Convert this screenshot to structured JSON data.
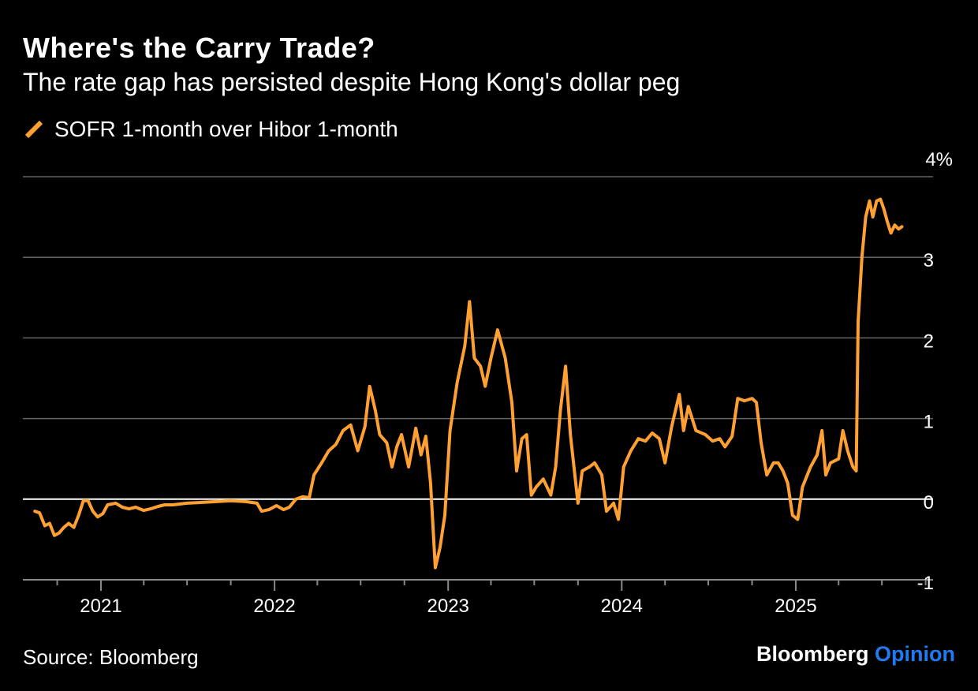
{
  "header": {
    "title": "Where's the Carry Trade?",
    "subtitle": "The rate gap has persisted despite Hong Kong's dollar peg"
  },
  "footer": {
    "source": "Source: Bloomberg",
    "brand_main": "Bloomberg",
    "brand_accent": "Opinion"
  },
  "colors": {
    "line": "#ffa033",
    "grid": "#666666",
    "zero": "#ffffff",
    "accent": "#1f7bf2"
  },
  "chart_data": {
    "type": "line",
    "title": "Where's the Carry Trade?",
    "subtitle": "The rate gap has persisted despite Hong Kong's dollar peg",
    "ylim": [
      -1,
      4
    ],
    "xlim": [
      "2020-08-01",
      "2025-12-31"
    ],
    "yticks": [
      -1,
      0,
      1,
      2,
      3,
      4
    ],
    "ytick_labels": [
      "-1",
      "0",
      "1",
      "2",
      "3",
      "4%"
    ],
    "xticks": [
      "2021-01-01",
      "2022-01-01",
      "2023-01-01",
      "2024-01-01",
      "2025-01-01"
    ],
    "xtick_labels": [
      "2021",
      "2022",
      "2023",
      "2024",
      "2025"
    ],
    "grid": true,
    "legend": "top-left",
    "series": [
      {
        "name": "SOFR 1-month over Hibor 1-month",
        "color": "#ffa033",
        "points": [
          [
            "2020-08-15",
            -0.15
          ],
          [
            "2020-08-25",
            -0.17
          ],
          [
            "2020-09-05",
            -0.33
          ],
          [
            "2020-09-15",
            -0.3
          ],
          [
            "2020-09-25",
            -0.45
          ],
          [
            "2020-10-05",
            -0.42
          ],
          [
            "2020-10-15",
            -0.35
          ],
          [
            "2020-10-25",
            -0.3
          ],
          [
            "2020-11-05",
            -0.35
          ],
          [
            "2020-11-15",
            -0.2
          ],
          [
            "2020-11-25",
            -0.02
          ],
          [
            "2020-12-05",
            -0.02
          ],
          [
            "2020-12-15",
            -0.15
          ],
          [
            "2020-12-25",
            -0.22
          ],
          [
            "2021-01-05",
            -0.18
          ],
          [
            "2021-01-15",
            -0.07
          ],
          [
            "2021-02-01",
            -0.05
          ],
          [
            "2021-02-15",
            -0.1
          ],
          [
            "2021-03-01",
            -0.12
          ],
          [
            "2021-03-15",
            -0.1
          ],
          [
            "2021-04-01",
            -0.14
          ],
          [
            "2021-04-15",
            -0.12
          ],
          [
            "2021-05-01",
            -0.09
          ],
          [
            "2021-05-15",
            -0.07
          ],
          [
            "2021-06-01",
            -0.07
          ],
          [
            "2021-07-01",
            -0.05
          ],
          [
            "2021-08-01",
            -0.04
          ],
          [
            "2021-09-01",
            -0.03
          ],
          [
            "2021-10-01",
            -0.02
          ],
          [
            "2021-11-01",
            -0.03
          ],
          [
            "2021-11-25",
            -0.05
          ],
          [
            "2021-12-05",
            -0.15
          ],
          [
            "2021-12-20",
            -0.13
          ],
          [
            "2022-01-05",
            -0.08
          ],
          [
            "2022-01-20",
            -0.13
          ],
          [
            "2022-02-01",
            -0.1
          ],
          [
            "2022-02-15",
            0.0
          ],
          [
            "2022-03-01",
            0.03
          ],
          [
            "2022-03-15",
            0.02
          ],
          [
            "2022-03-25",
            0.3
          ],
          [
            "2022-04-10",
            0.45
          ],
          [
            "2022-04-25",
            0.6
          ],
          [
            "2022-05-10",
            0.68
          ],
          [
            "2022-05-25",
            0.85
          ],
          [
            "2022-06-10",
            0.92
          ],
          [
            "2022-06-25",
            0.6
          ],
          [
            "2022-07-10",
            0.9
          ],
          [
            "2022-07-20",
            1.4
          ],
          [
            "2022-08-01",
            1.1
          ],
          [
            "2022-08-10",
            0.8
          ],
          [
            "2022-08-25",
            0.7
          ],
          [
            "2022-09-05",
            0.4
          ],
          [
            "2022-09-15",
            0.65
          ],
          [
            "2022-09-25",
            0.8
          ],
          [
            "2022-10-10",
            0.4
          ],
          [
            "2022-10-25",
            0.88
          ],
          [
            "2022-11-05",
            0.55
          ],
          [
            "2022-11-15",
            0.78
          ],
          [
            "2022-11-25",
            0.2
          ],
          [
            "2022-12-05",
            -0.85
          ],
          [
            "2022-12-15",
            -0.6
          ],
          [
            "2022-12-25",
            -0.2
          ],
          [
            "2023-01-05",
            0.85
          ],
          [
            "2023-01-20",
            1.45
          ],
          [
            "2023-02-05",
            1.9
          ],
          [
            "2023-02-15",
            2.45
          ],
          [
            "2023-02-25",
            1.75
          ],
          [
            "2023-03-10",
            1.65
          ],
          [
            "2023-03-20",
            1.4
          ],
          [
            "2023-04-01",
            1.75
          ],
          [
            "2023-04-15",
            2.1
          ],
          [
            "2023-05-01",
            1.75
          ],
          [
            "2023-05-15",
            1.2
          ],
          [
            "2023-05-25",
            0.35
          ],
          [
            "2023-06-05",
            0.75
          ],
          [
            "2023-06-15",
            0.8
          ],
          [
            "2023-06-25",
            0.05
          ],
          [
            "2023-07-05",
            0.15
          ],
          [
            "2023-07-20",
            0.25
          ],
          [
            "2023-08-05",
            0.05
          ],
          [
            "2023-08-15",
            0.4
          ],
          [
            "2023-08-25",
            1.1
          ],
          [
            "2023-09-05",
            1.65
          ],
          [
            "2023-09-15",
            0.8
          ],
          [
            "2023-10-01",
            -0.05
          ],
          [
            "2023-10-10",
            0.35
          ],
          [
            "2023-10-25",
            0.4
          ],
          [
            "2023-11-05",
            0.45
          ],
          [
            "2023-11-20",
            0.3
          ],
          [
            "2023-11-30",
            -0.15
          ],
          [
            "2023-12-15",
            -0.05
          ],
          [
            "2023-12-25",
            -0.25
          ],
          [
            "2024-01-05",
            0.4
          ],
          [
            "2024-01-20",
            0.6
          ],
          [
            "2024-02-05",
            0.75
          ],
          [
            "2024-02-20",
            0.72
          ],
          [
            "2024-03-05",
            0.82
          ],
          [
            "2024-03-20",
            0.75
          ],
          [
            "2024-04-01",
            0.45
          ],
          [
            "2024-04-15",
            0.9
          ],
          [
            "2024-05-01",
            1.3
          ],
          [
            "2024-05-10",
            0.85
          ],
          [
            "2024-05-20",
            1.15
          ],
          [
            "2024-06-05",
            0.85
          ],
          [
            "2024-06-25",
            0.8
          ],
          [
            "2024-07-10",
            0.72
          ],
          [
            "2024-07-25",
            0.75
          ],
          [
            "2024-08-05",
            0.65
          ],
          [
            "2024-08-20",
            0.78
          ],
          [
            "2024-09-01",
            1.25
          ],
          [
            "2024-09-15",
            1.22
          ],
          [
            "2024-10-01",
            1.25
          ],
          [
            "2024-10-10",
            1.2
          ],
          [
            "2024-10-20",
            0.7
          ],
          [
            "2024-11-01",
            0.3
          ],
          [
            "2024-11-15",
            0.45
          ],
          [
            "2024-11-25",
            0.45
          ],
          [
            "2024-12-05",
            0.35
          ],
          [
            "2024-12-15",
            0.2
          ],
          [
            "2024-12-25",
            -0.2
          ],
          [
            "2025-01-05",
            -0.25
          ],
          [
            "2025-01-15",
            0.15
          ],
          [
            "2025-02-01",
            0.4
          ],
          [
            "2025-02-15",
            0.55
          ],
          [
            "2025-02-25",
            0.85
          ],
          [
            "2025-03-05",
            0.3
          ],
          [
            "2025-03-15",
            0.45
          ],
          [
            "2025-04-01",
            0.5
          ],
          [
            "2025-04-10",
            0.85
          ],
          [
            "2025-04-20",
            0.6
          ],
          [
            "2025-05-01",
            0.4
          ],
          [
            "2025-05-08",
            0.35
          ],
          [
            "2025-05-12",
            2.2
          ],
          [
            "2025-05-20",
            3.0
          ],
          [
            "2025-05-28",
            3.5
          ],
          [
            "2025-06-05",
            3.7
          ],
          [
            "2025-06-12",
            3.5
          ],
          [
            "2025-06-20",
            3.7
          ],
          [
            "2025-06-28",
            3.72
          ],
          [
            "2025-07-05",
            3.6
          ],
          [
            "2025-07-12",
            3.45
          ],
          [
            "2025-07-20",
            3.3
          ],
          [
            "2025-07-28",
            3.4
          ],
          [
            "2025-08-05",
            3.35
          ],
          [
            "2025-08-12",
            3.38
          ]
        ]
      }
    ]
  }
}
